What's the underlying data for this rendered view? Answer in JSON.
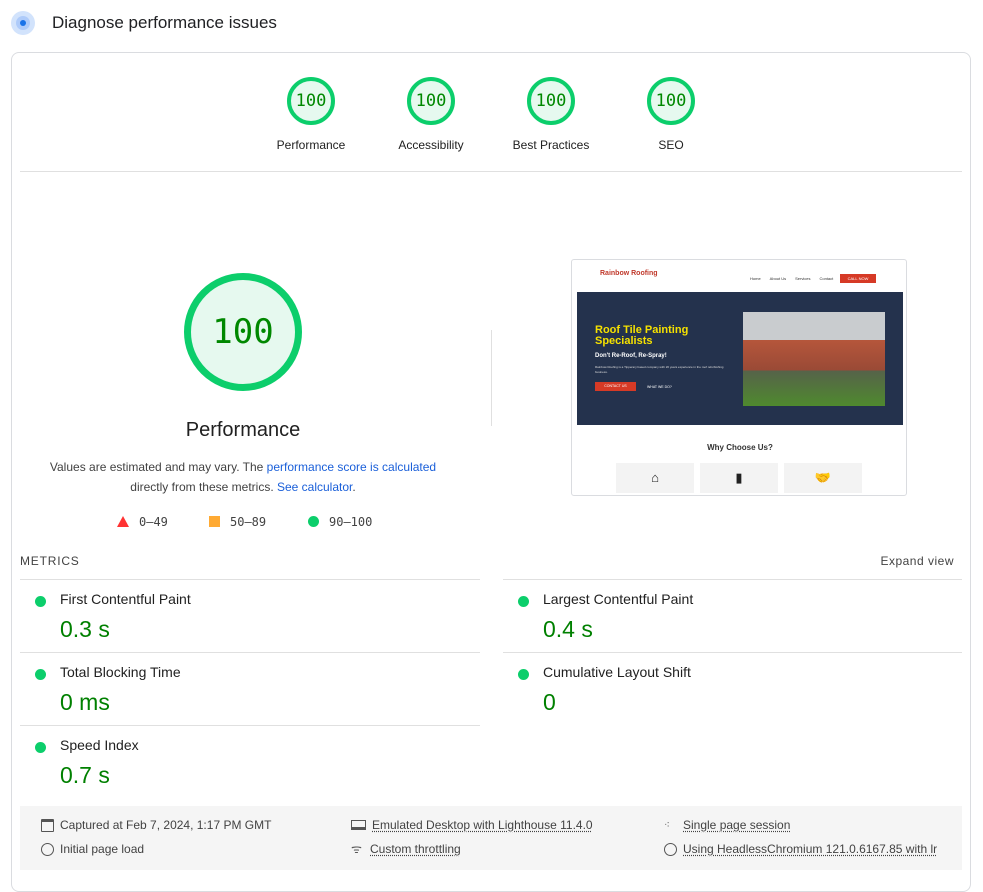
{
  "header": {
    "title": "Diagnose performance issues",
    "icon": "lighthouse-target-icon"
  },
  "categories": [
    {
      "label": "Performance",
      "score": "100"
    },
    {
      "label": "Accessibility",
      "score": "100"
    },
    {
      "label": "Best Practices",
      "score": "100"
    },
    {
      "label": "SEO",
      "score": "100"
    }
  ],
  "main": {
    "score": "100",
    "label": "Performance",
    "desc_1": "Values are estimated and may vary. The ",
    "desc_link": "performance score is calculated",
    "desc_2": " directly from these metrics. ",
    "desc_link2": "See calculator",
    "desc_3": "."
  },
  "legend": [
    {
      "range": "0–49",
      "color": "#ff3333",
      "shape": "triangle"
    },
    {
      "range": "50–89",
      "color": "#ffaa33",
      "shape": "square"
    },
    {
      "range": "90–100",
      "color": "#0cce6b",
      "shape": "circle"
    }
  ],
  "screenshot": {
    "logo": "Rainbow Roofing",
    "nav": [
      "Home",
      "About Us",
      "Services",
      "Contact"
    ],
    "cta": "CALL NOW",
    "hero_title": "Roof Tile Painting Specialists",
    "hero_sub": "Don't Re-Roof, Re-Spray!",
    "hero_text": "Rainbow Roofing is a Tipperary based company with 20 years experience in the roof refurbishing business.",
    "btn1": "CONTACT US",
    "btn2": "WHAT WE DO?",
    "why": "Why Choose Us?"
  },
  "metrics": {
    "label": "METRICS",
    "expand": "Expand view",
    "items": [
      {
        "name": "First Contentful Paint",
        "value": "0.3 s"
      },
      {
        "name": "Largest Contentful Paint",
        "value": "0.4 s"
      },
      {
        "name": "Total Blocking Time",
        "value": "0 ms"
      },
      {
        "name": "Cumulative Layout Shift",
        "value": "0"
      },
      {
        "name": "Speed Index",
        "value": "0.7 s"
      }
    ]
  },
  "footer": {
    "captured": "Captured at Feb 7, 2024, 1:17 PM GMT",
    "load": "Initial page load",
    "emulated": "Emulated Desktop with Lighthouse 11.4.0",
    "throttling": "Custom throttling",
    "session": "Single page session",
    "browser": "Using HeadlessChromium 121.0.6167.85 with lr"
  }
}
